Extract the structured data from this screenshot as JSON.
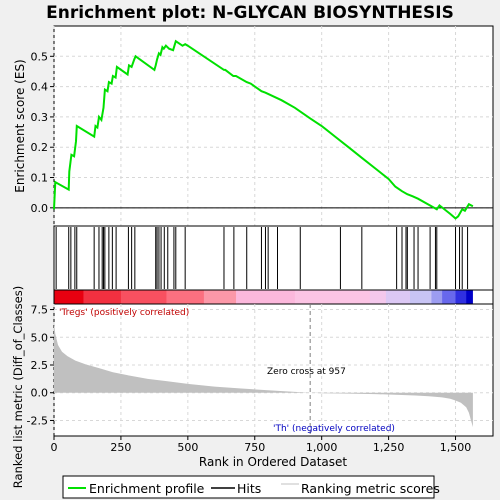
{
  "title": "Enrichment plot: N-GLYCAN BIOSYNTHESIS",
  "colors": {
    "background": "#f0f0f0",
    "panel": "#ffffff",
    "es_line": "#00e000",
    "hit": "#000000",
    "metric_fill": "#c0c0c0",
    "zero_line": "#808080",
    "pos_label": "#c00000",
    "neg_label": "#0000c0"
  },
  "chart_data": {
    "type": "line",
    "title": "Enrichment plot: N-GLYCAN BIOSYNTHESIS",
    "xlabel": "Rank in Ordered Dataset",
    "xlim": [
      0,
      1640
    ],
    "x_ticks": [
      0,
      250,
      500,
      750,
      1000,
      1250,
      1500
    ],
    "x_tick_labels": [
      "0",
      "250",
      "500",
      "750",
      "1,000",
      "1,250",
      "1,500"
    ],
    "es_panel": {
      "ylabel": "Enrichment score (ES)",
      "ylim": [
        -0.06,
        0.6
      ],
      "y_ticks": [
        0.0,
        0.1,
        0.2,
        0.3,
        0.4,
        0.5
      ],
      "y_tick_labels": [
        "0.0",
        "0.1",
        "0.2",
        "0.3",
        "0.4",
        "0.5"
      ],
      "grid": true,
      "series": [
        {
          "name": "Enrichment profile",
          "x": [
            0,
            5,
            55,
            57,
            65,
            75,
            82,
            85,
            150,
            155,
            162,
            168,
            177,
            185,
            190,
            200,
            205,
            215,
            220,
            230,
            235,
            275,
            280,
            290,
            300,
            305,
            375,
            380,
            385,
            392,
            398,
            405,
            410,
            418,
            430,
            445,
            455,
            480,
            490,
            500,
            635,
            640,
            670,
            680,
            720,
            735,
            775,
            790,
            850,
            900,
            957,
            1000,
            1050,
            1100,
            1150,
            1200,
            1250,
            1275,
            1300,
            1320,
            1340,
            1360,
            1400,
            1430,
            1440,
            1480,
            1500,
            1510,
            1525,
            1535,
            1550,
            1565
          ],
          "y": [
            -0.005,
            0.085,
            0.06,
            0.12,
            0.175,
            0.17,
            0.22,
            0.27,
            0.235,
            0.27,
            0.265,
            0.3,
            0.29,
            0.33,
            0.39,
            0.385,
            0.415,
            0.41,
            0.435,
            0.43,
            0.465,
            0.44,
            0.47,
            0.465,
            0.49,
            0.5,
            0.455,
            0.47,
            0.49,
            0.51,
            0.505,
            0.53,
            0.525,
            0.535,
            0.525,
            0.52,
            0.55,
            0.535,
            0.54,
            0.535,
            0.455,
            0.455,
            0.435,
            0.435,
            0.415,
            0.41,
            0.385,
            0.38,
            0.355,
            0.33,
            0.295,
            0.27,
            0.235,
            0.2,
            0.165,
            0.13,
            0.095,
            0.07,
            0.055,
            0.045,
            0.038,
            0.03,
            0.01,
            -0.005,
            0.008,
            -0.02,
            -0.035,
            -0.028,
            -0.005,
            -0.01,
            0.012,
            0.005
          ]
        }
      ]
    },
    "hits": [
      8,
      55,
      63,
      78,
      85,
      150,
      168,
      180,
      185,
      190,
      205,
      218,
      232,
      278,
      290,
      302,
      380,
      385,
      392,
      400,
      412,
      425,
      448,
      455,
      490,
      635,
      672,
      720,
      775,
      790,
      800,
      835,
      920,
      1070,
      1150,
      1280,
      1300,
      1315,
      1320,
      1345,
      1360,
      1405,
      1425,
      1430,
      1500,
      1515,
      1525,
      1545
    ],
    "metric_panel": {
      "ylabel": "Ranked list metric (Diff_of_Classes)",
      "ylim": [
        -3.9,
        8.0
      ],
      "y_ticks": [
        -2.5,
        0.0,
        2.5,
        5.0,
        7.5
      ],
      "y_tick_labels": [
        "-2.5",
        "0.0",
        "2.5",
        "5.0",
        "7.5"
      ],
      "x": [
        0,
        5,
        15,
        30,
        50,
        80,
        120,
        170,
        220,
        280,
        350,
        420,
        500,
        600,
        700,
        800,
        900,
        957,
        1000,
        1100,
        1200,
        1300,
        1350,
        1400,
        1450,
        1480,
        1500,
        1520,
        1540,
        1550,
        1558,
        1565
      ],
      "y": [
        6.3,
        5.3,
        4.3,
        3.7,
        3.3,
        2.9,
        2.55,
        2.2,
        1.85,
        1.55,
        1.25,
        1.05,
        0.8,
        0.55,
        0.38,
        0.22,
        0.08,
        0.0,
        -0.05,
        -0.08,
        -0.12,
        -0.2,
        -0.25,
        -0.32,
        -0.42,
        -0.55,
        -0.7,
        -0.9,
        -1.3,
        -1.8,
        -2.5,
        -3.1
      ]
    },
    "annotations": {
      "pos_label": "'Tregs' (positively correlated)",
      "neg_label": "'Th' (negatively correlated)",
      "zero_cross": "Zero cross at 957",
      "zero_cross_x": 957
    },
    "heat_bar": {
      "stops": [
        {
          "x": 0,
          "color": "#e80010"
        },
        {
          "x": 110,
          "color": "#f23040"
        },
        {
          "x": 250,
          "color": "#f85060"
        },
        {
          "x": 420,
          "color": "#fc7080"
        },
        {
          "x": 560,
          "color": "#fc98a8"
        },
        {
          "x": 680,
          "color": "#fcb8dc"
        },
        {
          "x": 900,
          "color": "#fcc4e4"
        },
        {
          "x": 1180,
          "color": "#f4c8ec"
        },
        {
          "x": 1240,
          "color": "#dcc8f4"
        },
        {
          "x": 1330,
          "color": "#c8c4f4"
        },
        {
          "x": 1410,
          "color": "#9c9cf0"
        },
        {
          "x": 1450,
          "color": "#6868ec"
        },
        {
          "x": 1500,
          "color": "#3030e0"
        },
        {
          "x": 1540,
          "color": "#0000c8"
        },
        {
          "x": 1565,
          "color": "#0000c8"
        }
      ]
    },
    "legend": {
      "placement": "bottom",
      "items": [
        {
          "label": "Enrichment profile",
          "kind": "line-green"
        },
        {
          "label": "Hits",
          "kind": "line-black"
        },
        {
          "label": "Ranking metric scores",
          "kind": "line-gray"
        }
      ]
    }
  }
}
